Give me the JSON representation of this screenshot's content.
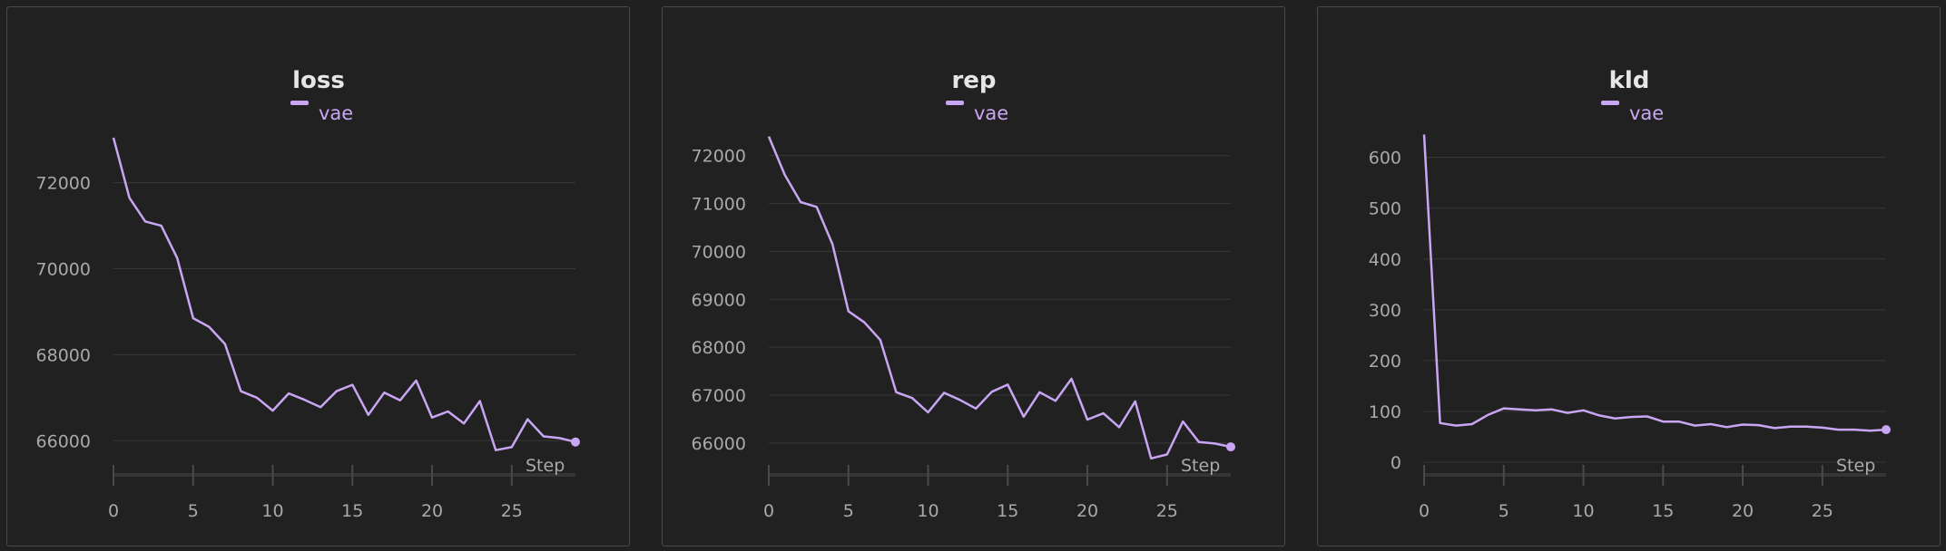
{
  "colors": {
    "background": "#202020",
    "panel": "#212121",
    "panel_border": "#4a4a4a",
    "series": "#c9a6f3",
    "grid": "#383838",
    "tick_label": "#a9a9a9",
    "title": "#e6e6e6"
  },
  "chart_data": [
    {
      "type": "line",
      "title": "loss",
      "xlabel": "Step",
      "ylabel": "",
      "legend": "top-center",
      "grid": true,
      "xlim": [
        0,
        29
      ],
      "ylim": [
        65500,
        73300
      ],
      "xticks": [
        0,
        5,
        10,
        15,
        20,
        25
      ],
      "yticks": [
        66000,
        68000,
        70000,
        72000
      ],
      "ytick_labels": [
        "66000",
        "68000",
        "70000",
        "72000"
      ],
      "series": [
        {
          "name": "vae",
          "x": [
            0,
            1,
            2,
            3,
            4,
            5,
            6,
            7,
            8,
            9,
            10,
            11,
            12,
            13,
            14,
            15,
            16,
            17,
            18,
            19,
            20,
            21,
            22,
            23,
            24,
            25,
            26,
            27,
            28,
            29
          ],
          "values": [
            73050,
            71650,
            71100,
            71000,
            70250,
            68850,
            68650,
            68250,
            67150,
            67000,
            66700,
            67100,
            66950,
            66780,
            67150,
            67300,
            66600,
            67120,
            66940,
            67400,
            66540,
            66680,
            66400,
            66920,
            65780,
            65850,
            66500,
            66100,
            66060,
            65970
          ]
        }
      ]
    },
    {
      "type": "line",
      "title": "rep",
      "xlabel": "Step",
      "ylabel": "",
      "legend": "top-center",
      "grid": true,
      "xlim": [
        0,
        29
      ],
      "ylim": [
        65600,
        72600
      ],
      "xticks": [
        0,
        5,
        10,
        15,
        20,
        25
      ],
      "yticks": [
        66000,
        67000,
        68000,
        69000,
        70000,
        71000,
        72000
      ],
      "ytick_labels": [
        "66000",
        "67000",
        "68000",
        "69000",
        "70000",
        "71000",
        "72000"
      ],
      "series": [
        {
          "name": "vae",
          "x": [
            0,
            1,
            2,
            3,
            4,
            5,
            6,
            7,
            8,
            9,
            10,
            11,
            12,
            13,
            14,
            15,
            16,
            17,
            18,
            19,
            20,
            21,
            22,
            23,
            24,
            25,
            26,
            27,
            28,
            29
          ],
          "values": [
            72400,
            71600,
            71030,
            70930,
            70150,
            68750,
            68520,
            68150,
            67060,
            66940,
            66640,
            67050,
            66900,
            66720,
            67070,
            67220,
            66550,
            67060,
            66880,
            67340,
            66490,
            66620,
            66330,
            66870,
            65680,
            65760,
            66450,
            66020,
            65990,
            65920
          ]
        }
      ]
    },
    {
      "type": "line",
      "title": "kld",
      "xlabel": "Step",
      "ylabel": "",
      "legend": "top-center",
      "grid": true,
      "xlim": [
        0,
        29
      ],
      "ylim": [
        0,
        660
      ],
      "xticks": [
        0,
        5,
        10,
        15,
        20,
        25
      ],
      "yticks": [
        0,
        100,
        200,
        300,
        400,
        500,
        600
      ],
      "ytick_labels": [
        "0",
        "100",
        "200",
        "300",
        "400",
        "500",
        "600"
      ],
      "series": [
        {
          "name": "vae",
          "x": [
            0,
            1,
            2,
            3,
            4,
            5,
            6,
            7,
            8,
            9,
            10,
            11,
            12,
            13,
            14,
            15,
            16,
            17,
            18,
            19,
            20,
            21,
            22,
            23,
            24,
            25,
            26,
            27,
            28,
            29
          ],
          "values": [
            645,
            77,
            72,
            75,
            93,
            106,
            104,
            102,
            104,
            97,
            102,
            92,
            86,
            89,
            90,
            80,
            80,
            72,
            75,
            69,
            74,
            73,
            67,
            70,
            70,
            68,
            64,
            64,
            62,
            64
          ]
        }
      ]
    }
  ]
}
